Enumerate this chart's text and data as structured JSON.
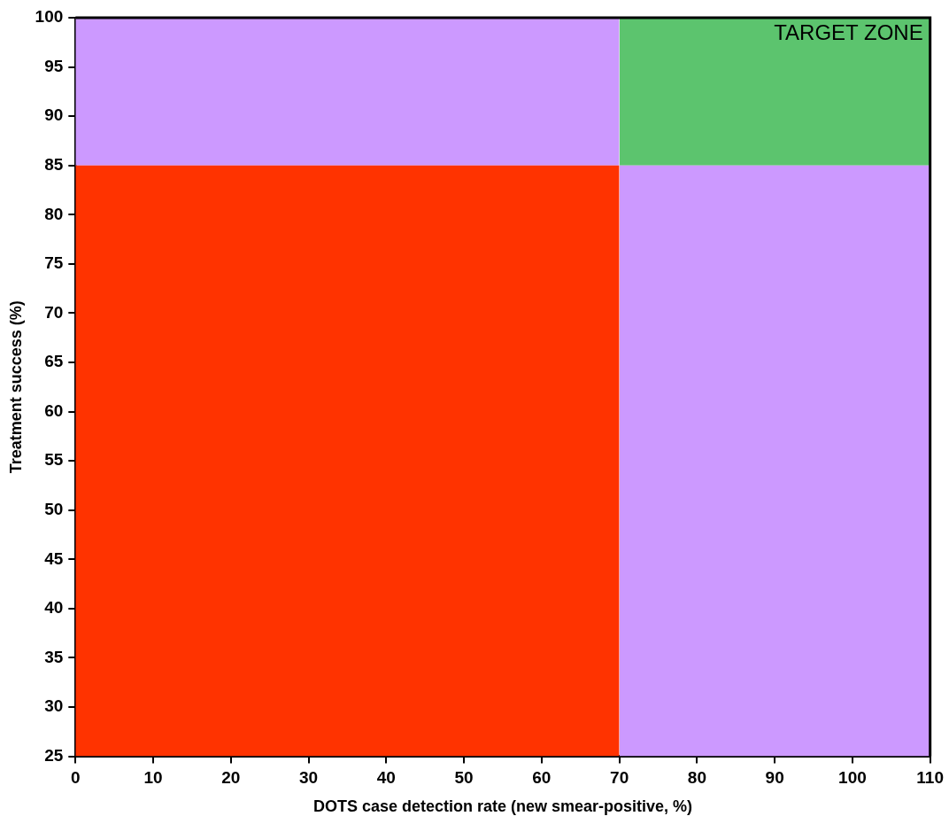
{
  "chart_data": {
    "type": "area",
    "xlabel": "DOTS case detection rate (new smear-positive, %)",
    "ylabel": "Treatment success (%)",
    "annotations": [
      "TARGET ZONE"
    ],
    "series": [
      {
        "color": "#ff3300",
        "x": [
          0,
          70
        ],
        "values": [
          85,
          85
        ]
      },
      {
        "color": "#cc99ff",
        "x": [
          0,
          70
        ],
        "values": [
          100,
          100
        ]
      },
      {
        "color": "#cc99ff",
        "x": [
          70,
          110
        ],
        "values": [
          85,
          85
        ]
      },
      {
        "color": "#5cc46e",
        "x": [
          70,
          110
        ],
        "values": [
          100,
          100
        ]
      }
    ],
    "xlim": [
      0,
      110
    ],
    "xticks": [
      0,
      10,
      20,
      30,
      40,
      50,
      60,
      70,
      80,
      90,
      100,
      110
    ],
    "ylim": [
      25,
      100
    ],
    "yticks": [
      25,
      30,
      35,
      40,
      45,
      50,
      55,
      60,
      65,
      70,
      75,
      80,
      85,
      90,
      95,
      100
    ],
    "grid": false,
    "legend": false,
    "marker": "none"
  }
}
